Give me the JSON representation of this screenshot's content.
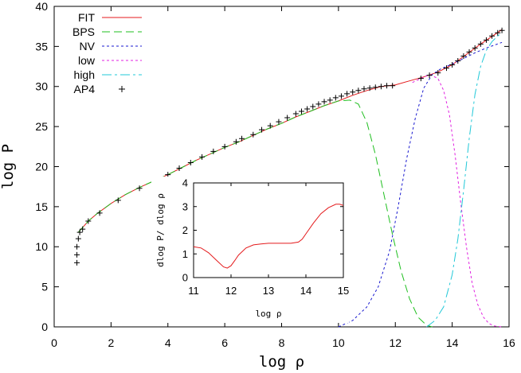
{
  "chart_data": [
    {
      "type": "line",
      "xlabel": "log ρ",
      "ylabel": "log P",
      "xlim": [
        0,
        16
      ],
      "ylim": [
        0,
        40
      ],
      "xticks": [
        0,
        2,
        4,
        6,
        8,
        10,
        12,
        14,
        16
      ],
      "yticks": [
        0,
        5,
        10,
        15,
        20,
        25,
        30,
        35,
        40
      ],
      "grid": false,
      "legend_position": "top-left",
      "series": [
        {
          "name": "FIT",
          "color": "#e41a1c",
          "style": "solid",
          "x": [
            0.85,
            1.0,
            1.2,
            1.5,
            2.0,
            2.5,
            3.0,
            3.5,
            4.0,
            4.5,
            5.0,
            5.5,
            6.0,
            6.5,
            7.0,
            7.5,
            8.0,
            8.5,
            9.0,
            9.5,
            10.0,
            10.5,
            11.0,
            11.5,
            12.0,
            12.5,
            13.0,
            13.5,
            14.0,
            14.5,
            15.0,
            15.5,
            15.75
          ],
          "y": [
            11.8,
            12.4,
            13.2,
            14.1,
            15.4,
            16.5,
            17.4,
            18.2,
            19.0,
            19.9,
            20.8,
            21.6,
            22.4,
            23.1,
            23.9,
            24.7,
            25.4,
            26.2,
            26.9,
            27.6,
            28.2,
            28.9,
            29.5,
            30.0,
            30.2,
            30.7,
            31.2,
            31.8,
            32.7,
            34.0,
            35.3,
            36.5,
            37.1
          ]
        },
        {
          "name": "BPS",
          "color": "#1fbf1f",
          "style": "dashed",
          "x": [
            0.85,
            1.0,
            1.2,
            1.5,
            2.0,
            2.5,
            3.0,
            3.5,
            4.0,
            4.5,
            5.0,
            5.5,
            6.0,
            6.5,
            7.0,
            7.5,
            8.0,
            8.5,
            9.0,
            9.5,
            10.0,
            10.4,
            10.7,
            11.0,
            11.3,
            11.6,
            11.9,
            12.2,
            12.5,
            12.8,
            13.1,
            13.3
          ],
          "y": [
            11.8,
            12.4,
            13.2,
            14.1,
            15.4,
            16.5,
            17.4,
            18.2,
            19.0,
            19.9,
            20.8,
            21.6,
            22.4,
            23.1,
            23.9,
            24.7,
            25.4,
            26.2,
            26.9,
            27.6,
            28.2,
            28.3,
            27.8,
            25.5,
            21.5,
            16.5,
            11.5,
            7.0,
            3.5,
            1.2,
            0.2,
            0.0
          ]
        },
        {
          "name": "NV",
          "color": "#1a1ad0",
          "style": "dotted",
          "x": [
            10.0,
            10.5,
            11.0,
            11.4,
            11.8,
            12.1,
            12.4,
            12.7,
            13.0,
            13.3,
            13.6,
            14.0,
            14.4,
            14.8,
            15.2,
            15.75
          ],
          "y": [
            0.0,
            0.8,
            2.5,
            5.0,
            9.5,
            15.0,
            21.0,
            26.0,
            29.8,
            31.5,
            32.2,
            32.8,
            33.5,
            34.2,
            34.8,
            35.5
          ]
        },
        {
          "name": "low",
          "color": "#e020e0",
          "style": "dotted",
          "x": [
            12.6,
            12.9,
            13.2,
            13.5,
            13.7,
            13.9,
            14.1,
            14.3,
            14.5,
            14.7,
            14.9,
            15.1,
            15.3,
            15.5,
            15.75
          ],
          "y": [
            30.5,
            31.0,
            31.5,
            31.0,
            29.5,
            26.5,
            21.5,
            15.5,
            10.0,
            5.5,
            2.8,
            1.2,
            0.4,
            0.1,
            0.0
          ]
        },
        {
          "name": "high",
          "color": "#20c8d8",
          "style": "dashdot",
          "x": [
            13.1,
            13.4,
            13.7,
            14.0,
            14.2,
            14.4,
            14.6,
            14.8,
            15.0,
            15.2,
            15.4,
            15.6,
            15.75
          ],
          "y": [
            0.0,
            0.8,
            2.5,
            6.5,
            11.0,
            17.0,
            23.5,
            29.0,
            32.5,
            34.5,
            35.6,
            36.3,
            36.7
          ]
        },
        {
          "name": "AP4",
          "color": "#000000",
          "style": "plus-markers",
          "x": [
            0.8,
            0.8,
            0.8,
            0.85,
            0.9,
            1.0,
            1.2,
            1.6,
            2.25,
            3.0,
            4.0,
            4.4,
            4.8,
            5.2,
            5.6,
            6.0,
            6.4,
            6.6,
            7.0,
            7.3,
            7.6,
            7.9,
            8.2,
            8.5,
            8.7,
            8.9,
            9.1,
            9.3,
            9.5,
            9.7,
            9.9,
            10.1,
            10.3,
            10.5,
            10.7,
            10.9,
            11.1,
            11.3,
            11.5,
            11.7,
            11.9,
            12.9,
            13.2,
            13.5,
            13.8,
            14.0,
            14.2,
            14.4,
            14.6,
            14.8,
            15.0,
            15.2,
            15.4,
            15.6,
            15.75
          ],
          "y": [
            8.0,
            9.0,
            10.0,
            11.0,
            11.8,
            12.2,
            13.2,
            14.2,
            15.8,
            17.3,
            19.0,
            19.8,
            20.5,
            21.2,
            21.9,
            22.5,
            23.1,
            23.5,
            24.0,
            24.6,
            25.1,
            25.6,
            26.1,
            26.6,
            26.9,
            27.2,
            27.5,
            27.8,
            28.1,
            28.3,
            28.6,
            28.8,
            29.1,
            29.3,
            29.5,
            29.7,
            29.8,
            29.9,
            30.0,
            30.1,
            30.1,
            31.0,
            31.4,
            31.7,
            32.3,
            32.7,
            33.2,
            33.8,
            34.3,
            34.8,
            35.3,
            35.8,
            36.3,
            36.7,
            37.0
          ]
        }
      ]
    },
    {
      "type": "line",
      "xlabel": "log ρ",
      "ylabel": "dlog P/ dlog ρ",
      "xlim": [
        11,
        15
      ],
      "ylim": [
        0,
        4
      ],
      "xticks": [
        11,
        12,
        13,
        14,
        15
      ],
      "yticks": [
        0,
        1,
        2,
        3,
        4
      ],
      "grid": false,
      "series": [
        {
          "color": "#e41a1c",
          "x": [
            11.0,
            11.2,
            11.4,
            11.6,
            11.8,
            11.9,
            12.0,
            12.1,
            12.2,
            12.4,
            12.6,
            12.8,
            13.0,
            13.2,
            13.4,
            13.6,
            13.8,
            13.9,
            14.0,
            14.2,
            14.4,
            14.6,
            14.8,
            14.9,
            15.0
          ],
          "y": [
            1.3,
            1.25,
            1.05,
            0.75,
            0.45,
            0.4,
            0.5,
            0.72,
            0.95,
            1.25,
            1.38,
            1.42,
            1.45,
            1.45,
            1.45,
            1.45,
            1.5,
            1.62,
            1.85,
            2.3,
            2.7,
            2.95,
            3.1,
            3.1,
            3.05
          ]
        }
      ]
    }
  ]
}
